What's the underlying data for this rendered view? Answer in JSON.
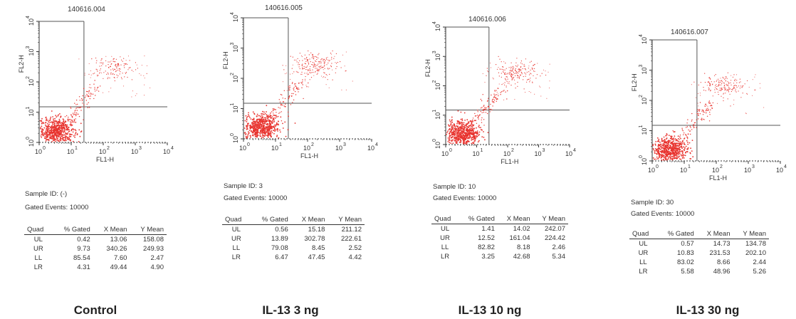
{
  "colors": {
    "dot": "#e8332e",
    "axis": "#333333",
    "quadrant_line": "#555555"
  },
  "axis_tick_base": "10",
  "axis_tick_exponents": [
    "0",
    "1",
    "2",
    "3",
    "4"
  ],
  "chart_data": [
    {
      "type": "scatter",
      "title": "140616.004",
      "xlabel": "FL1-H",
      "ylabel": "FL2-H",
      "xscale": "log",
      "yscale": "log",
      "xlim": [
        1,
        10000
      ],
      "ylim": [
        1,
        10000
      ],
      "quadrant_gate": {
        "x": 25,
        "y": 15
      },
      "sample_id": "Sample ID: (-)",
      "gated_events": "Gated Events: 10000",
      "table_headers": [
        "Quad",
        "% Gated",
        "X Mean",
        "Y Mean"
      ],
      "table_rows": [
        [
          "UL",
          "0.42",
          "13.06",
          "158.08"
        ],
        [
          "UR",
          "9.73",
          "340.26",
          "249.93"
        ],
        [
          "LL",
          "85.54",
          "7.60",
          "2.47"
        ],
        [
          "LR",
          "4.31",
          "49.44",
          "4.90"
        ]
      ],
      "caption": "Control"
    },
    {
      "type": "scatter",
      "title": "140616.005",
      "xlabel": "FL1-H",
      "ylabel": "FL2-H",
      "xscale": "log",
      "yscale": "log",
      "xlim": [
        1,
        10000
      ],
      "ylim": [
        1,
        10000
      ],
      "quadrant_gate": {
        "x": 25,
        "y": 15
      },
      "sample_id": "Sample ID: 3",
      "gated_events": "Gated Events: 10000",
      "table_headers": [
        "Quad",
        "% Gated",
        "X Mean",
        "Y Mean"
      ],
      "table_rows": [
        [
          "UL",
          "0.56",
          "15.18",
          "211.12"
        ],
        [
          "UR",
          "13.89",
          "302.78",
          "222.61"
        ],
        [
          "LL",
          "79.08",
          "8.45",
          "2.52"
        ],
        [
          "LR",
          "6.47",
          "47.45",
          "4.42"
        ]
      ],
      "caption": "IL-13 3 ng"
    },
    {
      "type": "scatter",
      "title": "140616.006",
      "xlabel": "FL1-H",
      "ylabel": "FL2-H",
      "xscale": "log",
      "yscale": "log",
      "xlim": [
        1,
        10000
      ],
      "ylim": [
        1,
        10000
      ],
      "quadrant_gate": {
        "x": 25,
        "y": 15
      },
      "sample_id": "Sample ID: 10",
      "gated_events": "Gated Events: 10000",
      "table_headers": [
        "Quad",
        "% Gated",
        "X Mean",
        "Y Mean"
      ],
      "table_rows": [
        [
          "UL",
          "1.41",
          "14.02",
          "242.07"
        ],
        [
          "UR",
          "12.52",
          "161.04",
          "224.42"
        ],
        [
          "LL",
          "82.82",
          "8.18",
          "2.46"
        ],
        [
          "LR",
          "3.25",
          "42.68",
          "5.34"
        ]
      ],
      "caption": "IL-13 10 ng"
    },
    {
      "type": "scatter",
      "title": "140616.007",
      "xlabel": "FL1-H",
      "ylabel": "FL2-H",
      "xscale": "log",
      "yscale": "log",
      "xlim": [
        1,
        10000
      ],
      "ylim": [
        1,
        10000
      ],
      "quadrant_gate": {
        "x": 25,
        "y": 15
      },
      "sample_id": "Sample ID: 30",
      "gated_events": "Gated Events: 10000",
      "table_headers": [
        "Quad",
        "% Gated",
        "X Mean",
        "Y Mean"
      ],
      "table_rows": [
        [
          "UL",
          "0.57",
          "14.73",
          "134.78"
        ],
        [
          "UR",
          "10.83",
          "231.53",
          "202.10"
        ],
        [
          "LL",
          "83.02",
          "8.66",
          "2.44"
        ],
        [
          "LR",
          "5.58",
          "48.96",
          "5.26"
        ]
      ],
      "caption": "IL-13 30 ng"
    }
  ]
}
